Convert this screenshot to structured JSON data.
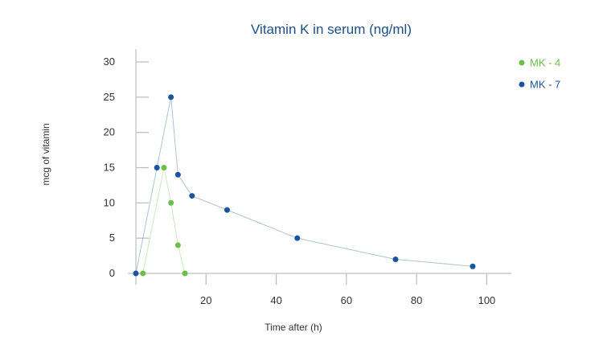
{
  "chart_data": {
    "type": "line",
    "title": "Vitamin K in serum (ng/ml)",
    "xlabel": "Time after  (h)",
    "ylabel": "mcg of vitamin",
    "xlim": [
      0,
      107
    ],
    "ylim": [
      0,
      30
    ],
    "x_ticks": [
      20,
      40,
      60,
      80,
      100
    ],
    "y_ticks": [
      0,
      5,
      10,
      15,
      20,
      25,
      30
    ],
    "grid": false,
    "legend": "top-right",
    "colors": {
      "title": "#1b4f8a",
      "axis": "#cccccc",
      "grid_ticks": "#bbbbbb"
    },
    "series": [
      {
        "name": "MK - 4",
        "color": "#6abf4b",
        "points": [
          [
            2,
            0
          ],
          [
            8,
            15
          ],
          [
            10,
            10
          ],
          [
            12,
            4
          ],
          [
            14,
            0
          ]
        ]
      },
      {
        "name": "MK - 7",
        "color": "#1a56a0",
        "points": [
          [
            0,
            0
          ],
          [
            6,
            15
          ],
          [
            10,
            25
          ],
          [
            12,
            14
          ],
          [
            16,
            11
          ],
          [
            26,
            9
          ],
          [
            46,
            5
          ],
          [
            74,
            2
          ],
          [
            96,
            1
          ]
        ]
      }
    ]
  }
}
